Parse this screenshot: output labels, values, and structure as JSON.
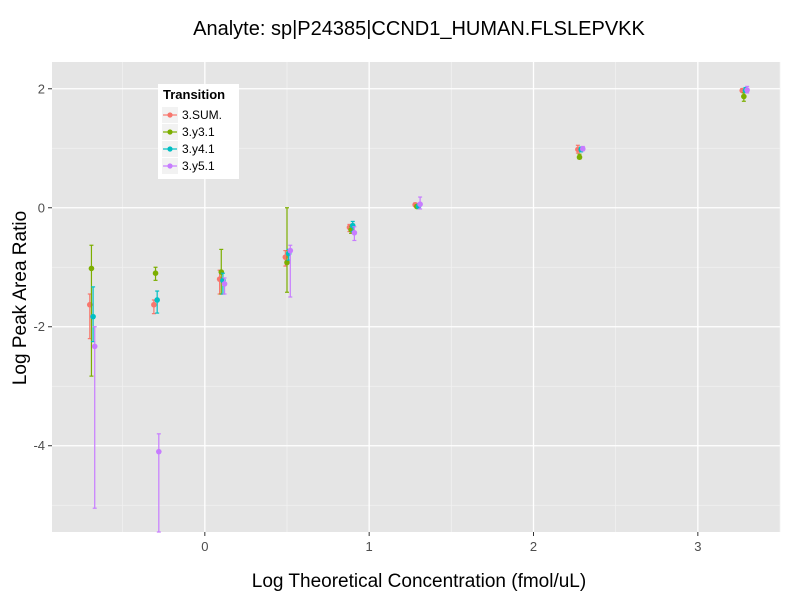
{
  "chart_data": {
    "type": "scatter",
    "title": "Analyte: sp|P24385|CCND1_HUMAN.FLSLEPVKK",
    "xlabel": "Log Theoretical Concentration (fmol/uL)",
    "ylabel": "Log Peak Area Ratio",
    "xlim": [
      -0.93,
      3.5
    ],
    "ylim": [
      -5.45,
      2.45
    ],
    "xticks": [
      0,
      1,
      2,
      3
    ],
    "xtick_labels": [
      "0",
      "1",
      "2",
      "3"
    ],
    "yticks": [
      -4,
      -2,
      0,
      2
    ],
    "ytick_labels": [
      "-4",
      "-2",
      "0",
      "2"
    ],
    "grid": true,
    "legend": {
      "title": "Transition",
      "placement": "top-left"
    },
    "series": [
      {
        "name": "3.SUM.",
        "color": "#F8766D",
        "points": [
          {
            "x": -0.7,
            "y": -1.63,
            "lo": -2.2,
            "hi": -1.45
          },
          {
            "x": -0.31,
            "y": -1.63,
            "lo": -1.78,
            "hi": -1.55
          },
          {
            "x": 0.09,
            "y": -1.2,
            "lo": -1.45,
            "hi": -1.05
          },
          {
            "x": 0.49,
            "y": -0.83,
            "lo": -0.98,
            "hi": -0.72
          },
          {
            "x": 0.88,
            "y": -0.33,
            "lo": -0.4,
            "hi": -0.28
          },
          {
            "x": 1.28,
            "y": 0.05,
            "lo": 0.02,
            "hi": 0.08
          },
          {
            "x": 2.27,
            "y": 0.98,
            "lo": 0.92,
            "hi": 1.05
          },
          {
            "x": 3.27,
            "y": 1.97,
            "lo": 1.95,
            "hi": 2.0
          }
        ]
      },
      {
        "name": "3.y3.1",
        "color": "#7CAE00",
        "points": [
          {
            "x": -0.69,
            "y": -1.02,
            "lo": -2.83,
            "hi": -0.63
          },
          {
            "x": -0.3,
            "y": -1.1,
            "lo": -1.22,
            "hi": -1.0
          },
          {
            "x": 0.1,
            "y": -1.08,
            "lo": -1.45,
            "hi": -0.7
          },
          {
            "x": 0.5,
            "y": -0.92,
            "lo": -1.42,
            "hi": 0.0
          },
          {
            "x": 0.89,
            "y": -0.37,
            "lo": -0.43,
            "hi": -0.31
          },
          {
            "x": 1.29,
            "y": 0.02,
            "lo": 0.0,
            "hi": 0.05
          },
          {
            "x": 2.28,
            "y": 0.85,
            "lo": 0.82,
            "hi": 0.9
          },
          {
            "x": 3.28,
            "y": 1.87,
            "lo": 1.79,
            "hi": 1.93
          }
        ]
      },
      {
        "name": "3.y4.1",
        "color": "#00BFC4",
        "points": [
          {
            "x": -0.68,
            "y": -1.83,
            "lo": -2.25,
            "hi": -1.33
          },
          {
            "x": -0.29,
            "y": -1.55,
            "lo": -1.77,
            "hi": -1.4
          },
          {
            "x": 0.11,
            "y": -1.22,
            "lo": -1.45,
            "hi": -1.1
          },
          {
            "x": 0.51,
            "y": -0.77,
            "lo": -0.88,
            "hi": -0.7
          },
          {
            "x": 0.9,
            "y": -0.3,
            "lo": -0.4,
            "hi": -0.23
          },
          {
            "x": 1.3,
            "y": 0.02,
            "lo": 0.0,
            "hi": 0.06
          },
          {
            "x": 2.29,
            "y": 0.98,
            "lo": 0.94,
            "hi": 1.02
          },
          {
            "x": 3.29,
            "y": 1.97,
            "lo": 1.95,
            "hi": 2.02
          }
        ]
      },
      {
        "name": "3.y5.1",
        "color": "#C77CFF",
        "points": [
          {
            "x": -0.67,
            "y": -2.33,
            "lo": -5.05,
            "hi": -2.0
          },
          {
            "x": -0.28,
            "y": -4.1,
            "lo": -5.45,
            "hi": -3.8
          },
          {
            "x": 0.12,
            "y": -1.28,
            "lo": -1.45,
            "hi": -1.18
          },
          {
            "x": 0.52,
            "y": -0.72,
            "lo": -1.5,
            "hi": -0.63
          },
          {
            "x": 0.91,
            "y": -0.42,
            "lo": -0.55,
            "hi": -0.32
          },
          {
            "x": 1.31,
            "y": 0.06,
            "lo": -0.02,
            "hi": 0.18
          },
          {
            "x": 2.3,
            "y": 0.99,
            "lo": 0.96,
            "hi": 1.03
          },
          {
            "x": 3.3,
            "y": 1.98,
            "lo": 1.93,
            "hi": 2.04
          }
        ]
      }
    ]
  }
}
